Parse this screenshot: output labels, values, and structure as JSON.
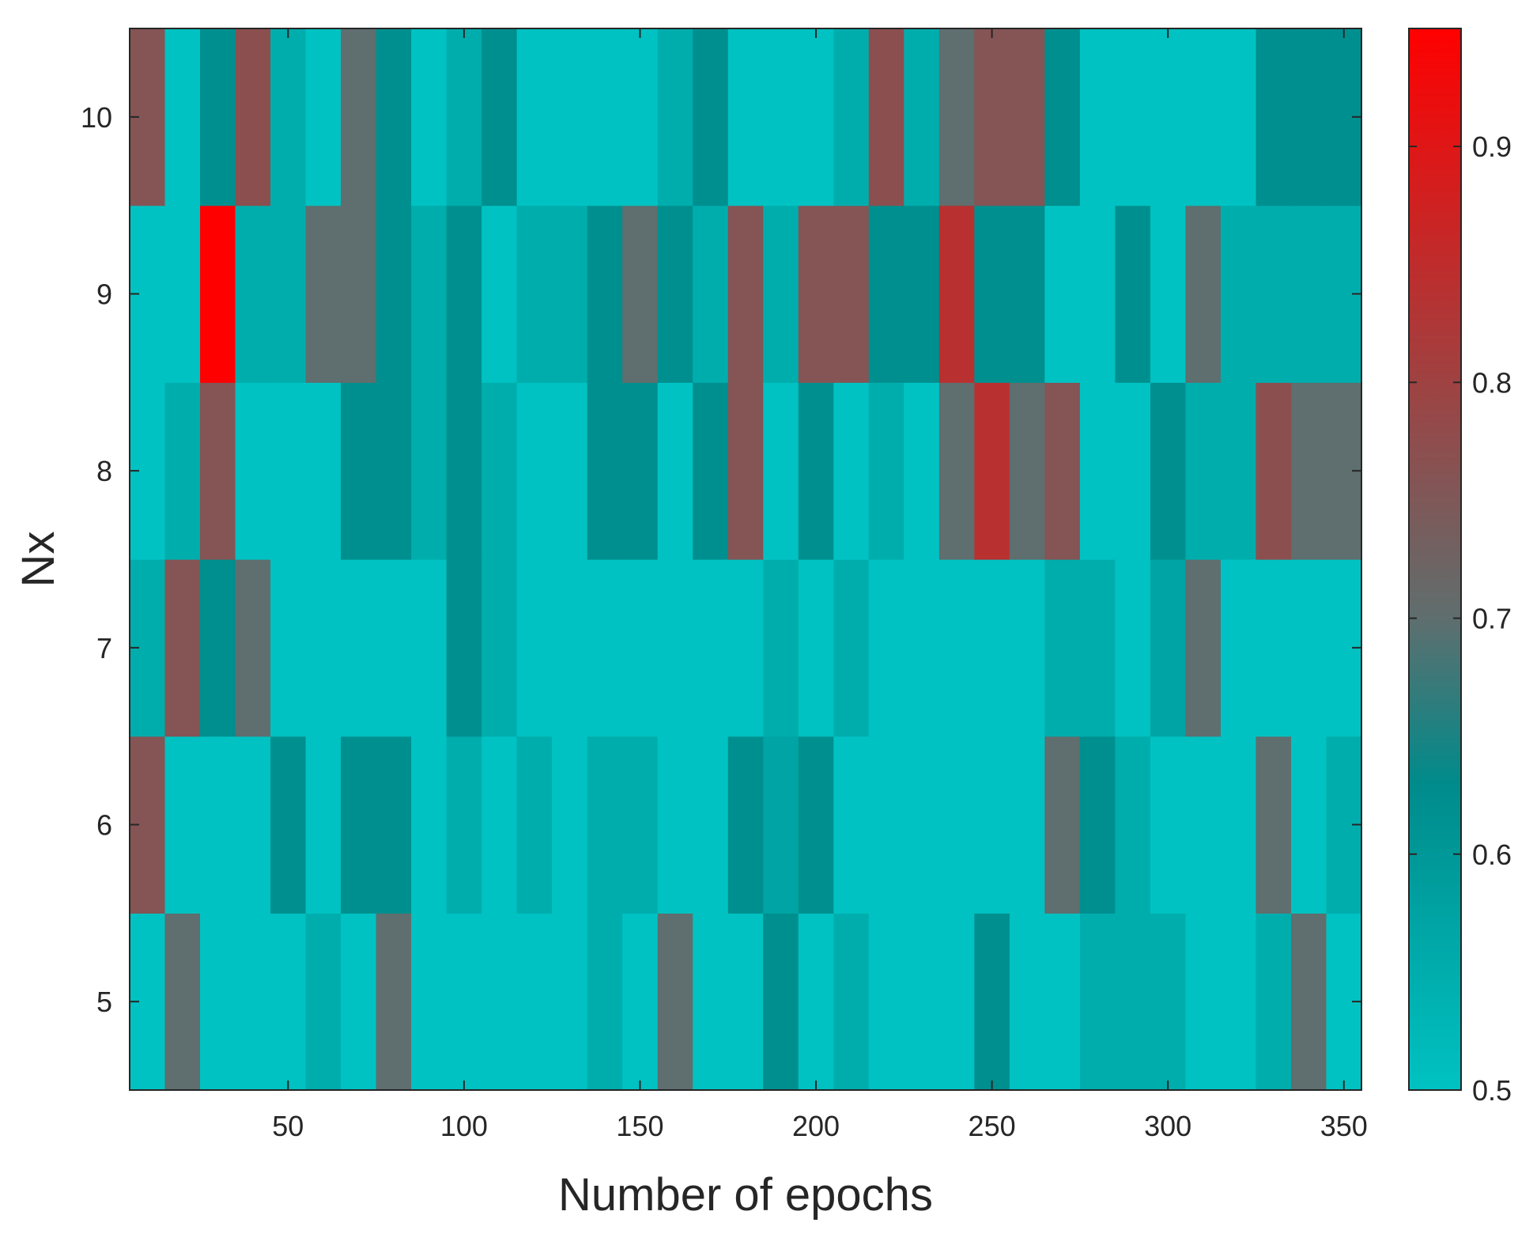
{
  "chart_data": {
    "type": "heatmap",
    "title": "",
    "xlabel": "Number of epochs",
    "ylabel": "Nx",
    "x": [
      10,
      20,
      30,
      40,
      50,
      60,
      70,
      80,
      90,
      100,
      110,
      120,
      130,
      140,
      150,
      160,
      170,
      180,
      190,
      200,
      210,
      220,
      230,
      240,
      250,
      260,
      270,
      280,
      290,
      300,
      310,
      320,
      330,
      340,
      350
    ],
    "y": [
      5,
      6,
      7,
      8,
      9,
      10
    ],
    "xlim": [
      5,
      355
    ],
    "ylim": [
      4.5,
      10.5
    ],
    "xticks": [
      50,
      100,
      150,
      200,
      250,
      300,
      350
    ],
    "yticks": [
      5,
      6,
      7,
      8,
      9,
      10
    ],
    "values": [
      [
        0.5,
        0.7,
        0.5,
        0.5,
        0.5,
        0.55,
        0.5,
        0.7,
        0.5,
        0.5,
        0.5,
        0.5,
        0.5,
        0.55,
        0.5,
        0.7,
        0.5,
        0.5,
        0.62,
        0.5,
        0.55,
        0.5,
        0.5,
        0.5,
        0.62,
        0.5,
        0.5,
        0.55,
        0.55,
        0.55,
        0.5,
        0.5,
        0.55,
        0.7,
        0.5
      ],
      [
        0.76,
        0.5,
        0.5,
        0.5,
        0.62,
        0.5,
        0.62,
        0.62,
        0.5,
        0.55,
        0.5,
        0.55,
        0.5,
        0.55,
        0.55,
        0.5,
        0.5,
        0.62,
        0.57,
        0.62,
        0.5,
        0.5,
        0.5,
        0.5,
        0.5,
        0.5,
        0.7,
        0.62,
        0.55,
        0.5,
        0.5,
        0.5,
        0.7,
        0.5,
        0.55
      ],
      [
        0.55,
        0.76,
        0.62,
        0.7,
        0.5,
        0.5,
        0.5,
        0.5,
        0.5,
        0.62,
        0.55,
        0.5,
        0.5,
        0.5,
        0.5,
        0.5,
        0.5,
        0.5,
        0.55,
        0.5,
        0.55,
        0.5,
        0.5,
        0.5,
        0.5,
        0.5,
        0.55,
        0.55,
        0.5,
        0.57,
        0.7,
        0.5,
        0.5,
        0.5,
        0.5
      ],
      [
        0.5,
        0.55,
        0.76,
        0.5,
        0.5,
        0.5,
        0.62,
        0.62,
        0.55,
        0.62,
        0.55,
        0.5,
        0.5,
        0.62,
        0.62,
        0.5,
        0.62,
        0.76,
        0.5,
        0.62,
        0.5,
        0.55,
        0.5,
        0.7,
        0.84,
        0.7,
        0.76,
        0.5,
        0.5,
        0.62,
        0.55,
        0.55,
        0.77,
        0.7,
        0.7
      ],
      [
        0.5,
        0.5,
        0.95,
        0.55,
        0.55,
        0.7,
        0.7,
        0.62,
        0.55,
        0.62,
        0.5,
        0.55,
        0.55,
        0.62,
        0.7,
        0.62,
        0.55,
        0.76,
        0.55,
        0.76,
        0.76,
        0.62,
        0.62,
        0.84,
        0.62,
        0.62,
        0.5,
        0.5,
        0.62,
        0.5,
        0.7,
        0.55,
        0.55,
        0.55,
        0.55
      ],
      [
        0.76,
        0.5,
        0.62,
        0.77,
        0.55,
        0.5,
        0.7,
        0.62,
        0.5,
        0.55,
        0.62,
        0.5,
        0.5,
        0.5,
        0.5,
        0.55,
        0.62,
        0.5,
        0.5,
        0.5,
        0.55,
        0.77,
        0.55,
        0.7,
        0.76,
        0.76,
        0.62,
        0.5,
        0.5,
        0.5,
        0.5,
        0.5,
        0.62,
        0.62,
        0.62
      ]
    ],
    "colorbar": {
      "min": 0.5,
      "max": 0.95,
      "ticks": [
        0.5,
        0.6,
        0.7,
        0.8,
        0.9
      ]
    },
    "colormap": [
      "#00c2c2",
      "#008b8b",
      "#5f6e6e",
      "#ff0000"
    ],
    "colormap_stops": [
      0.5,
      0.63,
      0.7,
      0.95
    ],
    "grid": false,
    "legend": "colorbar right"
  }
}
